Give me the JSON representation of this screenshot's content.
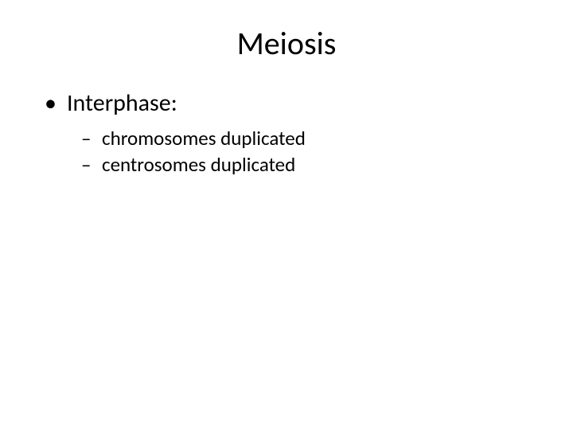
{
  "slide": {
    "title": "Meiosis",
    "bullets": {
      "l1_marker": "•",
      "l1_text": "Interphase:",
      "l2_marker": "–",
      "sub1": "chromosomes duplicated",
      "sub2": "centrosomes duplicated"
    }
  },
  "style": {
    "background_color": "#ffffff",
    "text_color": "#000000",
    "font_family": "Calibri, Arial, sans-serif",
    "title_fontsize": 40,
    "body_fontsize_l1": 30,
    "body_fontsize_l2": 25
  }
}
